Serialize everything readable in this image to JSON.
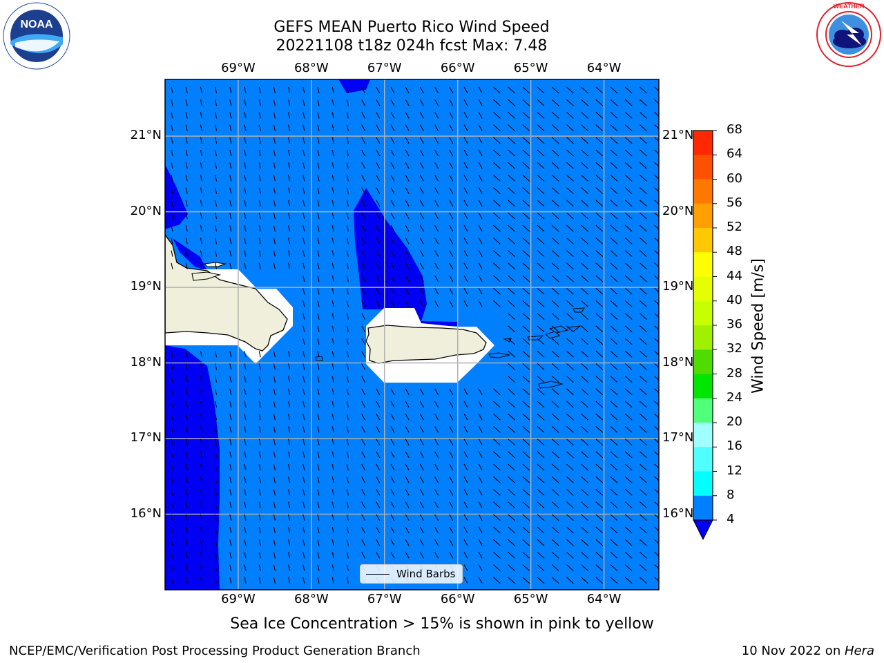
{
  "title": {
    "line1": "GEFS MEAN Puerto Rico Wind Speed",
    "line2": "20221108 t18z 024h fcst   Max: 7.48"
  },
  "logos": {
    "noaa": {
      "text": "NOAA",
      "ring_text": "NATIONAL OCEANIC AND ATMOSPHERIC ADMINISTRATION · U.S. DEPARTMENT OF COMMERCE"
    },
    "nws": {
      "ring_text": "NATIONAL WEATHER SERVICE"
    }
  },
  "map": {
    "lon_ticks": [
      "69°W",
      "68°W",
      "67°W",
      "66°W",
      "65°W",
      "64°W"
    ],
    "lat_ticks": [
      "21°N",
      "20°N",
      "19°N",
      "18°N",
      "17°N",
      "16°N"
    ],
    "lon_values": [
      -69,
      -68,
      -67,
      -66,
      -65,
      -64
    ],
    "lat_values": [
      21,
      20,
      19,
      18,
      17,
      16
    ],
    "extent": {
      "lon_min": -70.0,
      "lon_max": -63.25,
      "lat_min": 15.0,
      "lat_max": 21.75
    },
    "colors": {
      "ocean_4_8": "#0080ff",
      "below_4": "#0000f5",
      "land": "#efefdc",
      "grid": "#b0b0b0"
    },
    "legend_label": "Wind Barbs"
  },
  "colorbar": {
    "title": "Wind Speed [m/s]",
    "levels": [
      "68",
      "64",
      "60",
      "56",
      "52",
      "48",
      "44",
      "40",
      "36",
      "32",
      "28",
      "24",
      "20",
      "16",
      "12",
      "8",
      "4"
    ],
    "colors": [
      "#ff0000",
      "#ff2800",
      "#ff5000",
      "#ff7800",
      "#ffa000",
      "#ffc800",
      "#ffff00",
      "#e6ff00",
      "#c8ff00",
      "#a0f000",
      "#50dc00",
      "#00e600",
      "#50ff7a",
      "#a0ffff",
      "#50ffff",
      "#00ffff",
      "#0080ff"
    ],
    "extend_color": "#0000f5"
  },
  "note": "Sea Ice Concentration > 15% is shown in pink to yellow",
  "footer": {
    "left": "NCEP/EMC/Verification Post Processing Product Generation Branch",
    "right_prefix": "10 Nov 2022 on ",
    "right_machine": "Hera"
  }
}
